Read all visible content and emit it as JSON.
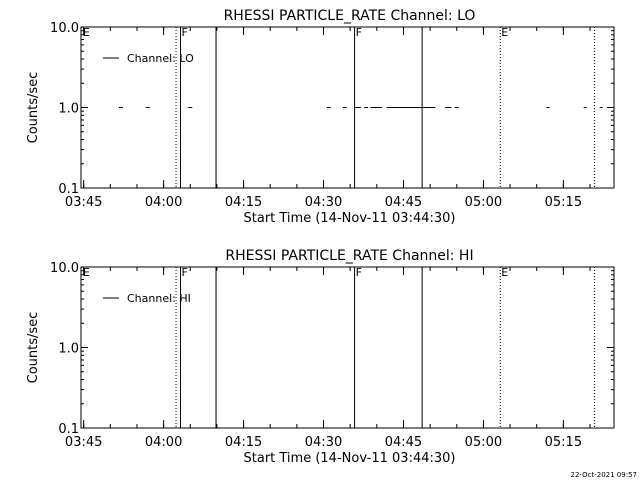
{
  "footer": {
    "timestamp": "22-Oct-2021 09:57"
  },
  "chart_data": [
    {
      "type": "line",
      "title": "RHESSI PARTICLE_RATE Channel: LO",
      "xlabel": "Start Time (14-Nov-11 03:44:30)",
      "ylabel": "Counts/sec",
      "yscale": "log",
      "ylim": [
        0.1,
        10.0
      ],
      "xlim": [
        "03:44:30",
        "05:24:30"
      ],
      "xticks": [
        "03:45",
        "04:00",
        "04:15",
        "04:30",
        "04:45",
        "05:00",
        "05:15"
      ],
      "yticks": [
        "0.1",
        "1.0",
        "10.0"
      ],
      "legend": {
        "position": "top-left",
        "entries": [
          "Channel: LO"
        ]
      },
      "series": [
        {
          "name": "Channel: LO",
          "points_at_1": [
            "03:52",
            "03:57",
            "04:05",
            "04:31",
            "04:34",
            "04:38",
            "04:55"
          ],
          "segments_at_1": [
            [
              "04:36",
              "04:37"
            ],
            [
              "04:39",
              "04:41"
            ],
            [
              "04:42",
              "04:51"
            ],
            [
              "04:53",
              "04:54"
            ],
            [
              "05:12",
              "05:12"
            ],
            [
              "05:19",
              "05:19"
            ],
            [
              "05:22",
              "05:22"
            ]
          ]
        }
      ],
      "markers": [
        {
          "time": "03:44:40",
          "label": "E",
          "style": "none"
        },
        {
          "time": "04:02:20",
          "label": "",
          "style": "dotted"
        },
        {
          "time": "04:03:10",
          "label": "F",
          "style": "solid"
        },
        {
          "time": "04:09:50",
          "label": "",
          "style": "solid"
        },
        {
          "time": "04:35:50",
          "label": "F",
          "style": "solid"
        },
        {
          "time": "04:48:30",
          "label": "",
          "style": "solid"
        },
        {
          "time": "05:03:10",
          "label": "E",
          "style": "dotted"
        },
        {
          "time": "05:20:50",
          "label": "",
          "style": "dotted"
        }
      ]
    },
    {
      "type": "line",
      "title": "RHESSI PARTICLE_RATE Channel: HI",
      "xlabel": "Start Time (14-Nov-11 03:44:30)",
      "ylabel": "Counts/sec",
      "yscale": "log",
      "ylim": [
        0.1,
        10.0
      ],
      "xlim": [
        "03:44:30",
        "05:24:30"
      ],
      "xticks": [
        "03:45",
        "04:00",
        "04:15",
        "04:30",
        "04:45",
        "05:00",
        "05:15"
      ],
      "yticks": [
        "0.1",
        "1.0",
        "10.0"
      ],
      "legend": {
        "position": "top-left",
        "entries": [
          "Channel: HI"
        ]
      },
      "series": [
        {
          "name": "Channel: HI",
          "points_at_1": [],
          "segments_at_1": []
        }
      ],
      "markers": [
        {
          "time": "03:44:40",
          "label": "E",
          "style": "none"
        },
        {
          "time": "04:02:20",
          "label": "",
          "style": "dotted"
        },
        {
          "time": "04:03:10",
          "label": "F",
          "style": "solid"
        },
        {
          "time": "04:09:50",
          "label": "",
          "style": "solid"
        },
        {
          "time": "04:35:50",
          "label": "F",
          "style": "solid"
        },
        {
          "time": "04:48:30",
          "label": "",
          "style": "solid"
        },
        {
          "time": "05:03:10",
          "label": "E",
          "style": "dotted"
        },
        {
          "time": "05:20:50",
          "label": "",
          "style": "dotted"
        }
      ]
    }
  ]
}
